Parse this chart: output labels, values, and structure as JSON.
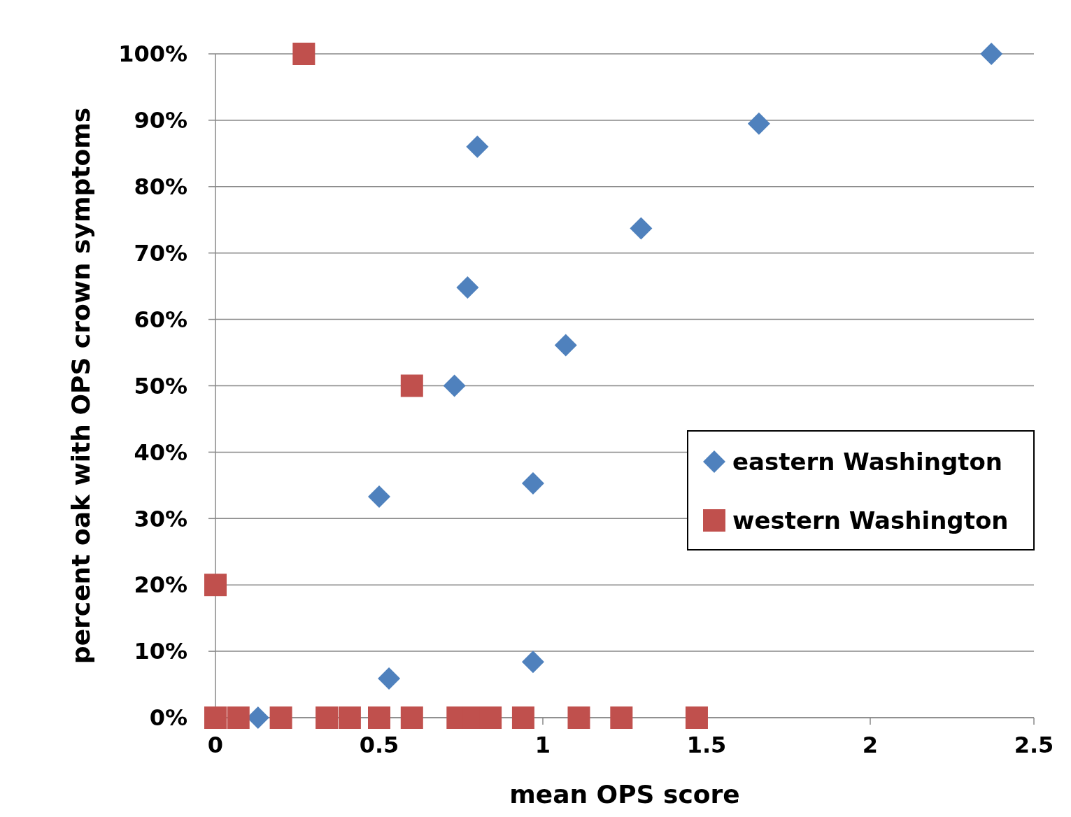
{
  "chart_data": {
    "type": "scatter",
    "xlabel": "mean OPS score",
    "ylabel": "percent oak with OPS crown symptoms",
    "xlim": [
      0,
      2.5
    ],
    "xticks": [
      0,
      0.5,
      1,
      1.5,
      2,
      2.5
    ],
    "ylim": [
      0,
      100
    ],
    "yticks": [
      {
        "value": 0,
        "label": "0%"
      },
      {
        "value": 10,
        "label": "10%"
      },
      {
        "value": 20,
        "label": "20%"
      },
      {
        "value": 30,
        "label": "30%"
      },
      {
        "value": 40,
        "label": "40%"
      },
      {
        "value": 50,
        "label": "50%"
      },
      {
        "value": 60,
        "label": "60%"
      },
      {
        "value": 70,
        "label": "70%"
      },
      {
        "value": 80,
        "label": "80%"
      },
      {
        "value": 90,
        "label": "90%"
      },
      {
        "value": 100,
        "label": "100%"
      }
    ],
    "grid": "y",
    "legend": "right",
    "series": [
      {
        "name": "eastern Washington",
        "color": "#4f81bd",
        "marker": "diamond",
        "x": [
          2.37,
          1.66,
          0.8,
          1.3,
          0.77,
          1.07,
          0.73,
          0.5,
          0.97,
          0.53,
          0.97,
          0.13
        ],
        "values": [
          100,
          89.5,
          86,
          73.7,
          64.8,
          56.1,
          50,
          33.3,
          35.3,
          5.9,
          8.4,
          0
        ]
      },
      {
        "name": "western Washington",
        "color": "#c0504d",
        "marker": "square",
        "x": [
          0.27,
          0.6,
          0,
          0,
          0.07,
          0.2,
          0.34,
          0.41,
          0.5,
          0.6,
          0.74,
          0.79,
          0.84,
          0.94,
          1.11,
          1.24,
          1.47
        ],
        "values": [
          100,
          50,
          20,
          0,
          0,
          0,
          0,
          0,
          0,
          0,
          0,
          0,
          0,
          0,
          0,
          0,
          0
        ]
      }
    ]
  }
}
